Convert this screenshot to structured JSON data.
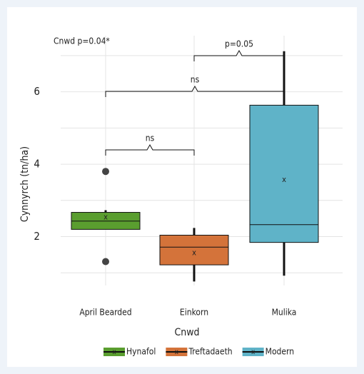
{
  "chart_data": {
    "type": "box",
    "annotation": "Cnwd p=0.04*",
    "x_label": "Cnwd",
    "y_label": "Cynnyrch (tn/ha)",
    "categories": [
      "April Bearded",
      "Einkorn",
      "Mulika"
    ],
    "series": [
      {
        "name": "Hynafol",
        "color": "#5a9e2f",
        "whisker_low": 2.2,
        "q1": 2.2,
        "median": 2.43,
        "q3": 2.67,
        "whisker_high": 2.73,
        "mean": 2.53,
        "outliers": [
          3.8,
          1.31
        ]
      },
      {
        "name": "Treftadaeth",
        "color": "#d4733a",
        "whisker_low": 0.76,
        "q1": 1.22,
        "median": 1.71,
        "q3": 2.04,
        "whisker_high": 2.24,
        "mean": 1.55,
        "outliers": []
      },
      {
        "name": "Modern",
        "color": "#5fb3c8",
        "whisker_low": 0.92,
        "q1": 1.84,
        "median": 2.33,
        "q3": 5.63,
        "whisker_high": 7.12,
        "mean": 3.57,
        "outliers": []
      }
    ],
    "mean_marker": "x",
    "comparisons": [
      {
        "label": "ns",
        "groups": [
          0,
          1
        ]
      },
      {
        "label": "ns",
        "groups": [
          0,
          2
        ]
      },
      {
        "label": "p=0.05",
        "groups": [
          1,
          2
        ]
      }
    ],
    "ylim": [
      0.65,
      7.55
    ],
    "yticks": [
      2,
      4,
      6
    ],
    "minor_yticks": [
      1,
      3,
      5,
      7
    ],
    "grid": true,
    "legend": "bottom"
  }
}
